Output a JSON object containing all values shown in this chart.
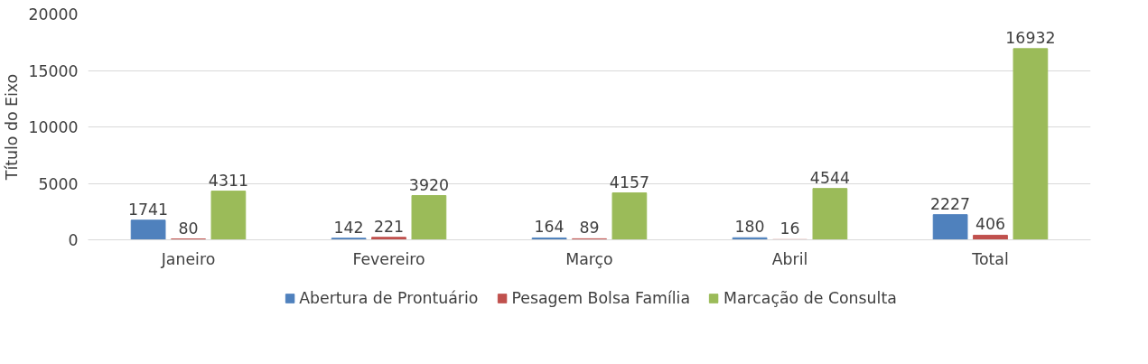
{
  "chart_data": {
    "type": "bar",
    "ylabel": "Título do Eixo",
    "categories": [
      "Janeiro",
      "Fevereiro",
      "Março",
      "Abril",
      "Total"
    ],
    "series": [
      {
        "name": "Abertura de Prontuário",
        "color": "#4f81bd",
        "values": [
          1741,
          142,
          164,
          180,
          2227
        ]
      },
      {
        "name": "Pesagem Bolsa Família",
        "color": "#c0504d",
        "values": [
          80,
          221,
          89,
          16,
          406
        ]
      },
      {
        "name": "Marcação de Consulta",
        "color": "#9bbb59",
        "values": [
          4311,
          3920,
          4157,
          4544,
          16932
        ]
      }
    ],
    "ylim": [
      0,
      20000
    ],
    "yticks": [
      0,
      5000,
      10000,
      15000,
      20000
    ],
    "grid": "y",
    "legend": "bottom",
    "data_labels": true
  }
}
